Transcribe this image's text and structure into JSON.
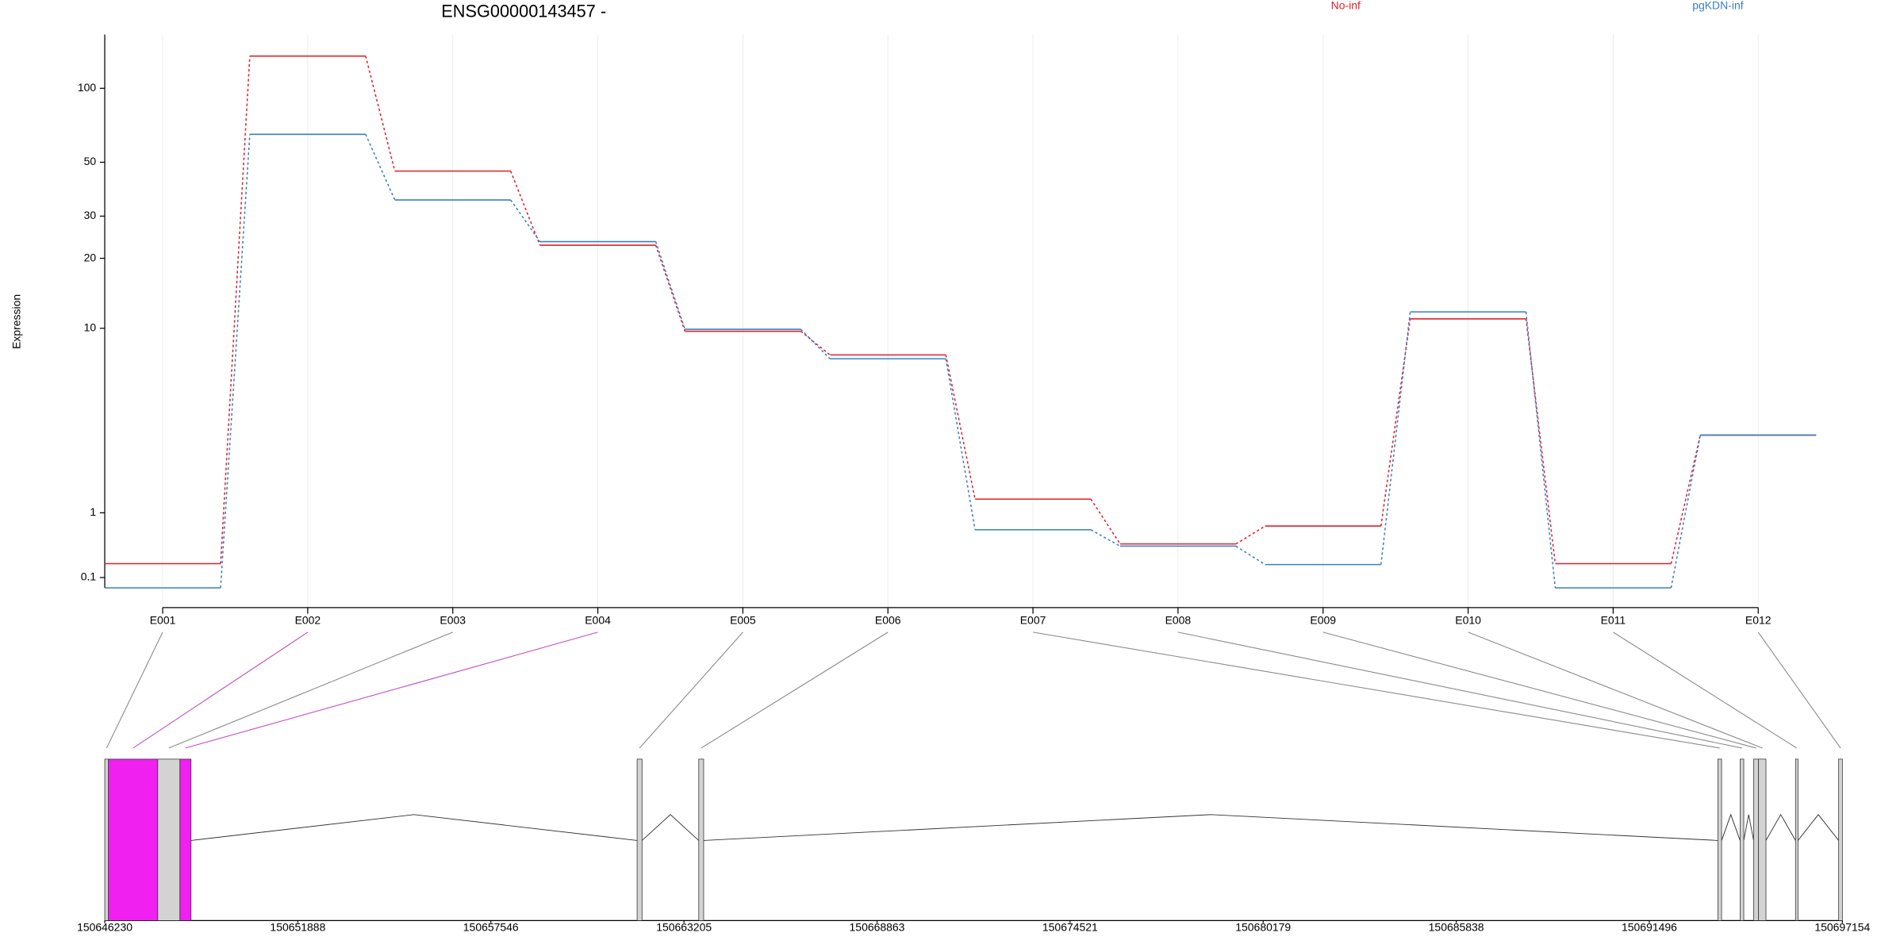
{
  "chart_data": {
    "type": "exon-line",
    "title": "ENSG00000143457 -",
    "y_label": "Expression",
    "yscale": "log1p",
    "ylim": [
      0,
      165
    ],
    "yticks": [
      0.1,
      1,
      10,
      20,
      30,
      50,
      100
    ],
    "grid": true,
    "categories": [
      "E001",
      "E002",
      "E003",
      "E004",
      "E005",
      "E006",
      "E007",
      "E008",
      "E009",
      "E010",
      "E011",
      "E012"
    ],
    "series": [
      {
        "name": "No-inf",
        "color": "#e0202a",
        "values": [
          0.25,
          135,
          46,
          22.7,
          9.7,
          7.6,
          1.27,
          0.5,
          0.77,
          11,
          0.25,
          3.1
        ]
      },
      {
        "name": "pgKDN-inf",
        "color": "#3a7fc1",
        "values": [
          0,
          65,
          35,
          23.5,
          9.9,
          7.3,
          0.71,
          0.47,
          0.24,
          11.8,
          0,
          3.1
        ]
      }
    ],
    "gene_model": {
      "xlim": [
        150646230,
        150697154
      ],
      "xticks": [
        150646230,
        150651888,
        150657546,
        150663205,
        150668863,
        150674521,
        150680179,
        150685838,
        150691496,
        150697154
      ],
      "exons": [
        {
          "start": 150646230,
          "end": 150646338,
          "color": "#d3d3d3"
        },
        {
          "start": 150646338,
          "end": 150647783,
          "color": "#f020f0"
        },
        {
          "start": 150647783,
          "end": 150648433,
          "color": "#d3d3d3"
        },
        {
          "start": 150648433,
          "end": 150648758,
          "color": "#f020f0"
        },
        {
          "start": 150661832,
          "end": 150661976,
          "color": "#d3d3d3"
        },
        {
          "start": 150663638,
          "end": 150663782,
          "color": "#d3d3d3"
        },
        {
          "start": 150693506,
          "end": 150693614,
          "color": "#d3d3d3"
        },
        {
          "start": 150694156,
          "end": 150694264,
          "color": "#d3d3d3"
        },
        {
          "start": 150694553,
          "end": 150694697,
          "color": "#d3d3d3"
        },
        {
          "start": 150694697,
          "end": 150694914,
          "color": "#d3d3d3"
        },
        {
          "start": 150695781,
          "end": 150695853,
          "color": "#d3d3d3"
        },
        {
          "start": 150697045,
          "end": 150697154,
          "color": "#d3d3d3"
        }
      ]
    }
  }
}
